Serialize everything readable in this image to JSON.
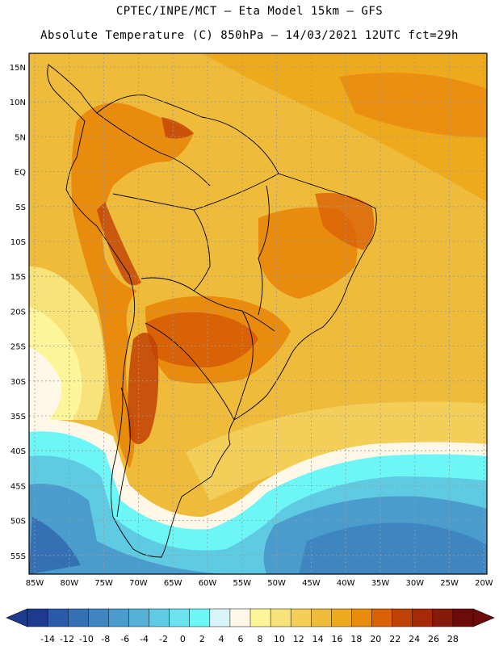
{
  "header": {
    "line1": "CPTEC/INPE/MCT –  Eta Model 15km – GFS",
    "line2": "Absolute Temperature (C) 850hPa – 14/03/2021 12UTC fct=29h"
  },
  "map": {
    "lat_labels": [
      "15N",
      "10N",
      "5N",
      "EQ",
      "5S",
      "10S",
      "15S",
      "20S",
      "25S",
      "30S",
      "35S",
      "40S",
      "45S",
      "50S",
      "55S"
    ],
    "lon_labels": [
      "85W",
      "80W",
      "75W",
      "70W",
      "65W",
      "60W",
      "55W",
      "50W",
      "45W",
      "40W",
      "35W",
      "30W",
      "25W",
      "20W"
    ],
    "field": "Absolute Temperature (C) 850hPa"
  },
  "colorbar": {
    "labels": [
      "-14",
      "-12",
      "-10",
      "-8",
      "-6",
      "-4",
      "-2",
      "0",
      "2",
      "4",
      "6",
      "8",
      "10",
      "12",
      "14",
      "16",
      "18",
      "20",
      "22",
      "24",
      "26",
      "28"
    ],
    "colors": [
      "#1d3a8f",
      "#2a5aa8",
      "#3570b4",
      "#3f86c0",
      "#4a9ccc",
      "#55b2d6",
      "#5ecbe3",
      "#6ae3ef",
      "#6cf6f6",
      "#d8f4f8",
      "#fff8e8",
      "#fdf59a",
      "#f8e37a",
      "#f3cf5a",
      "#efbb3b",
      "#edaa1d",
      "#e98b0d",
      "#d96206",
      "#c04105",
      "#a42a08",
      "#861a0b",
      "#6d0b0b"
    ]
  }
}
